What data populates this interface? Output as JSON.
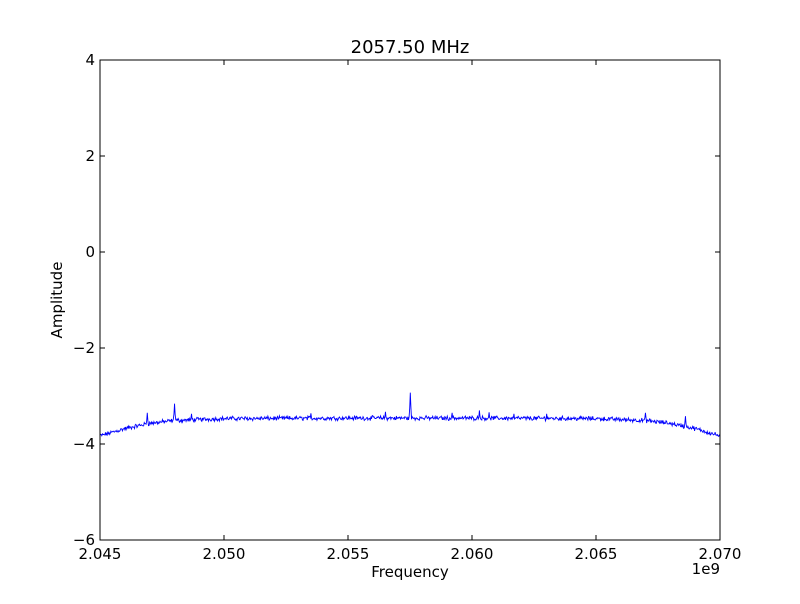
{
  "chart_data": {
    "type": "line",
    "title": "2057.50 MHz",
    "xlabel": "Frequency",
    "ylabel": "Amplitude",
    "x_offset_label": "1e9",
    "xlim": [
      2.045,
      2.07
    ],
    "ylim": [
      -6,
      4
    ],
    "x_ticks": [
      2.045,
      2.05,
      2.055,
      2.06,
      2.065,
      2.07
    ],
    "x_tick_labels": [
      "2.045",
      "2.050",
      "2.055",
      "2.060",
      "2.065",
      "2.070"
    ],
    "y_ticks": [
      -6,
      -4,
      -2,
      0,
      2,
      4
    ],
    "y_tick_labels": [
      "−6",
      "−4",
      "−2",
      "0",
      "2",
      "4"
    ],
    "grid": false,
    "series": [
      {
        "color": "#0000ff",
        "baseline": [
          [
            2.045,
            -3.83
          ],
          [
            2.046,
            -3.68
          ],
          [
            2.047,
            -3.57
          ],
          [
            2.048,
            -3.51
          ],
          [
            2.05,
            -3.47
          ],
          [
            2.055,
            -3.46
          ],
          [
            2.06,
            -3.46
          ],
          [
            2.065,
            -3.47
          ],
          [
            2.067,
            -3.51
          ],
          [
            2.068,
            -3.57
          ],
          [
            2.069,
            -3.68
          ],
          [
            2.07,
            -3.83
          ]
        ],
        "peaks": [
          [
            2.0469,
            -3.35
          ],
          [
            2.048,
            -3.16
          ],
          [
            2.0487,
            -3.37
          ],
          [
            2.0535,
            -3.36
          ],
          [
            2.0565,
            -3.33
          ],
          [
            2.05752,
            -2.93
          ],
          [
            2.0592,
            -3.35
          ],
          [
            2.0603,
            -3.3
          ],
          [
            2.0607,
            -3.34
          ],
          [
            2.0617,
            -3.37
          ],
          [
            2.063,
            -3.37
          ],
          [
            2.067,
            -3.35
          ],
          [
            2.0686,
            -3.42
          ]
        ]
      }
    ]
  }
}
